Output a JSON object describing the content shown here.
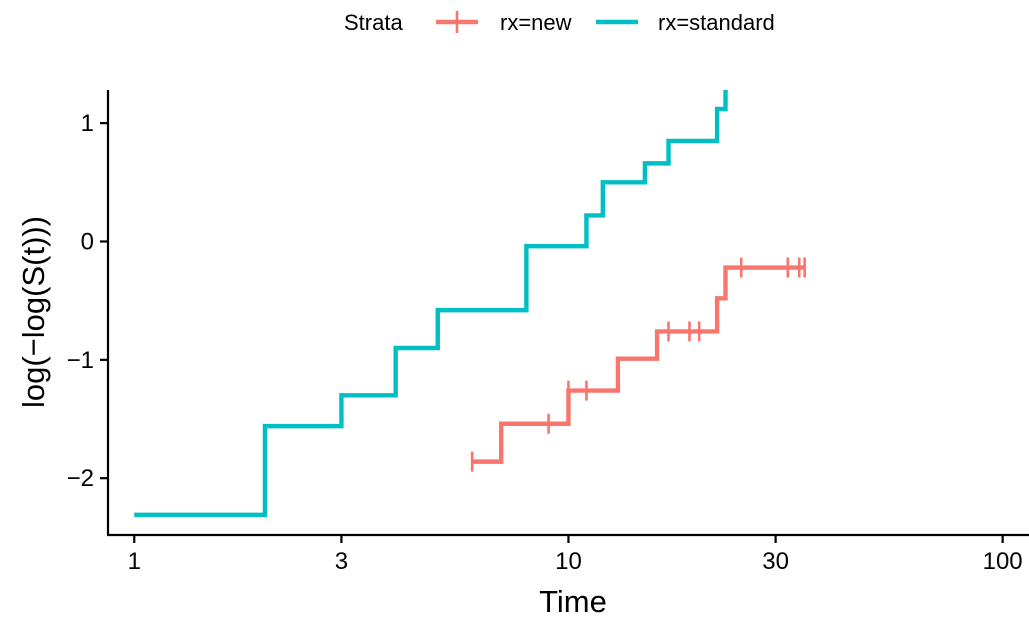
{
  "chart_data": {
    "type": "line",
    "title": "",
    "xlabel": "Time",
    "ylabel": "log(−log(S(t)))",
    "x_scale": "log10",
    "xlim": [
      0.87,
      115
    ],
    "ylim": [
      -2.48,
      1.28
    ],
    "x_ticks": [
      1,
      3,
      10,
      30,
      100
    ],
    "x_tick_labels": [
      "1",
      "3",
      "10",
      "30",
      "100"
    ],
    "y_ticks": [
      -2,
      -1,
      0,
      1
    ],
    "y_tick_labels": [
      "−2",
      "−1",
      "0",
      "1"
    ],
    "grid": false,
    "legend": {
      "position": "top",
      "title": "Strata",
      "entries": [
        "rx=new",
        "rx=standard"
      ]
    },
    "series": [
      {
        "name": "rx=new",
        "color": "#F8766D",
        "steps": [
          {
            "x": 6,
            "y": -1.86
          },
          {
            "x": 7,
            "y": -1.54
          },
          {
            "x": 10,
            "y": -1.26
          },
          {
            "x": 13,
            "y": -0.99
          },
          {
            "x": 16,
            "y": -0.76
          },
          {
            "x": 22,
            "y": -0.48
          },
          {
            "x": 23,
            "y": -0.22
          }
        ],
        "end_x": 35,
        "censored": [
          6,
          9,
          10,
          11,
          17,
          19,
          20,
          25,
          32,
          32,
          34,
          35
        ]
      },
      {
        "name": "rx=standard",
        "color": "#00BFC4",
        "steps": [
          {
            "x": 1,
            "y": -2.31
          },
          {
            "x": 2,
            "y": -1.56
          },
          {
            "x": 3,
            "y": -1.3
          },
          {
            "x": 4,
            "y": -0.9
          },
          {
            "x": 5,
            "y": -0.58
          },
          {
            "x": 8,
            "y": -0.04
          },
          {
            "x": 11,
            "y": 0.22
          },
          {
            "x": 12,
            "y": 0.5
          },
          {
            "x": 15,
            "y": 0.66
          },
          {
            "x": 17,
            "y": 0.85
          },
          {
            "x": 22,
            "y": 1.12
          },
          {
            "x": 23,
            "y": 1.28
          }
        ],
        "end_x": 23,
        "censored": []
      }
    ]
  }
}
